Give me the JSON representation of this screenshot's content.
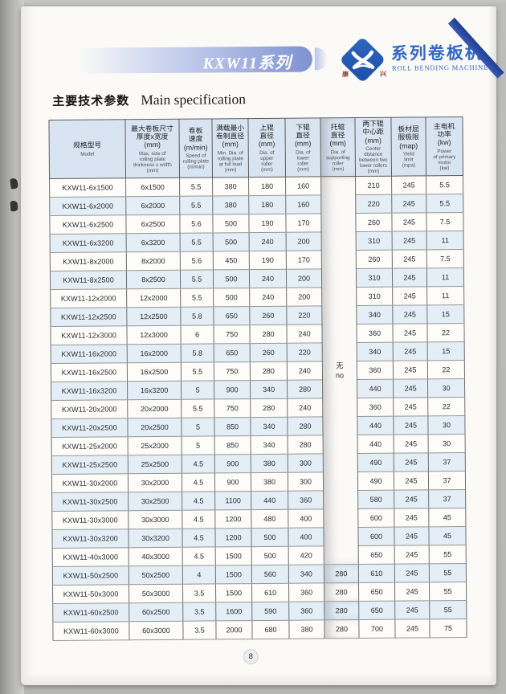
{
  "header": {
    "banner_title": "KXW11系列",
    "logo": {
      "brand_zh": "系列卷板机",
      "brand_en": "ROLL BENDING MACHINE",
      "mark_left": "康",
      "mark_right": "兴"
    }
  },
  "section": {
    "title_zh": "主要技术参数",
    "title_en": "Main specification"
  },
  "table": {
    "columns": [
      {
        "zh": "规格型号",
        "en": "Model"
      },
      {
        "zh": "最大卷板尺寸\n厚度x宽度\n(mm)",
        "en": "Max. size of\nrolling plate\nthickness x width\n(mm)"
      },
      {
        "zh": "卷板\n速度\n(m/min)",
        "en": "Speed of\nrolling plate\n(m/min)"
      },
      {
        "zh": "满载最小\n卷制直径\n(mm)",
        "en": "Min. Dia. of\nrolling plate\nat full load\n(mm)"
      },
      {
        "zh": "上辊\n直径\n(mm)",
        "en": "Dia. of\nupper\nroller\n(mm)"
      },
      {
        "zh": "下辊\n直径\n(mm)",
        "en": "Dia. of\nlower\nroller\n(mm)"
      },
      {
        "zh": "托辊\n直径\n(mm)",
        "en": "Dia. of\nsupporting\nroller\n(mm)"
      },
      {
        "zh": "两下辊\n中心距\n(mm)",
        "en": "Center distance\nbetween two\nlower rollers\n(mm)"
      },
      {
        "zh": "板材屈\n服极限\n(map)",
        "en": "Yield\nlimit\n(mpa)"
      },
      {
        "zh": "主电机\n功率\n(kw)",
        "en": "Power\nof primary\nmotor\n(kw)"
      }
    ],
    "no_support_label": "无\nno",
    "rows": [
      [
        "KXW11-6x1500",
        "6x1500",
        "5.5",
        "380",
        "180",
        "160",
        "",
        "210",
        "245",
        "5.5"
      ],
      [
        "KXW11-6x2000",
        "6x2000",
        "5.5",
        "380",
        "180",
        "160",
        "",
        "220",
        "245",
        "5.5"
      ],
      [
        "KXW11-6x2500",
        "6x2500",
        "5.6",
        "500",
        "190",
        "170",
        "",
        "260",
        "245",
        "7.5"
      ],
      [
        "KXW11-6x3200",
        "6x3200",
        "5.5",
        "500",
        "240",
        "200",
        "",
        "310",
        "245",
        "11"
      ],
      [
        "KXW11-8x2000",
        "8x2000",
        "5.6",
        "450",
        "190",
        "170",
        "",
        "260",
        "245",
        "7.5"
      ],
      [
        "KXW11-8x2500",
        "8x2500",
        "5.5",
        "500",
        "240",
        "200",
        "",
        "310",
        "245",
        "11"
      ],
      [
        "KXW11-12x2000",
        "12x2000",
        "5.5",
        "500",
        "240",
        "200",
        "",
        "310",
        "245",
        "11"
      ],
      [
        "KXW11-12x2500",
        "12x2500",
        "5.8",
        "650",
        "260",
        "220",
        "",
        "340",
        "245",
        "15"
      ],
      [
        "KXW11-12x3000",
        "12x3000",
        "6",
        "750",
        "280",
        "240",
        "",
        "360",
        "245",
        "22"
      ],
      [
        "KXW11-16x2000",
        "16x2000",
        "5.8",
        "650",
        "260",
        "220",
        "",
        "340",
        "245",
        "15"
      ],
      [
        "KXW11-16x2500",
        "16x2500",
        "5.5",
        "750",
        "280",
        "240",
        "",
        "360",
        "245",
        "22"
      ],
      [
        "KXW11-16x3200",
        "16x3200",
        "5",
        "900",
        "340",
        "280",
        "",
        "440",
        "245",
        "30"
      ],
      [
        "KXW11-20x2000",
        "20x2000",
        "5.5",
        "750",
        "280",
        "240",
        "",
        "360",
        "245",
        "22"
      ],
      [
        "KXW11-20x2500",
        "20x2500",
        "5",
        "850",
        "340",
        "280",
        "",
        "440",
        "245",
        "30"
      ],
      [
        "KXW11-25x2000",
        "25x2000",
        "5",
        "850",
        "340",
        "280",
        "",
        "440",
        "245",
        "30"
      ],
      [
        "KXW11-25x2500",
        "25x2500",
        "4.5",
        "900",
        "380",
        "300",
        "",
        "490",
        "245",
        "37"
      ],
      [
        "KXW11-30x2000",
        "30x2000",
        "4.5",
        "900",
        "380",
        "300",
        "",
        "490",
        "245",
        "37"
      ],
      [
        "KXW11-30x2500",
        "30x2500",
        "4.5",
        "1100",
        "440",
        "360",
        "",
        "580",
        "245",
        "37"
      ],
      [
        "KXW11-30x3000",
        "30x3000",
        "4.5",
        "1200",
        "480",
        "400",
        "",
        "600",
        "245",
        "45"
      ],
      [
        "KXW11-30x3200",
        "30x3200",
        "4.5",
        "1200",
        "500",
        "400",
        "",
        "600",
        "245",
        "45"
      ],
      [
        "KXW11-40x3000",
        "40x3000",
        "4.5",
        "1500",
        "500",
        "420",
        "",
        "650",
        "245",
        "55"
      ],
      [
        "KXW11-50x2500",
        "50x2500",
        "4",
        "1500",
        "560",
        "340",
        "280",
        "610",
        "245",
        "55"
      ],
      [
        "KXW11-50x3000",
        "50x3000",
        "3.5",
        "1500",
        "610",
        "360",
        "280",
        "650",
        "245",
        "55"
      ],
      [
        "KXW11-60x2500",
        "60x2500",
        "3.5",
        "1600",
        "590",
        "360",
        "280",
        "650",
        "245",
        "55"
      ],
      [
        "KXW11-60x3000",
        "60x3000",
        "3.5",
        "2000",
        "680",
        "380",
        "280",
        "700",
        "245",
        "75"
      ]
    ]
  },
  "footer": {
    "page_number": "8"
  },
  "colors": {
    "banner_blue": "#7e92d0",
    "logo_blue": "#2f66bd",
    "brand_text_blue": "#3468c4",
    "header_cell_bg": "#d8e4f1",
    "stripe_bg": "#e4eef7",
    "page_bg": "#fbfaf6",
    "edge_blue_dark": "#1d3e94"
  }
}
